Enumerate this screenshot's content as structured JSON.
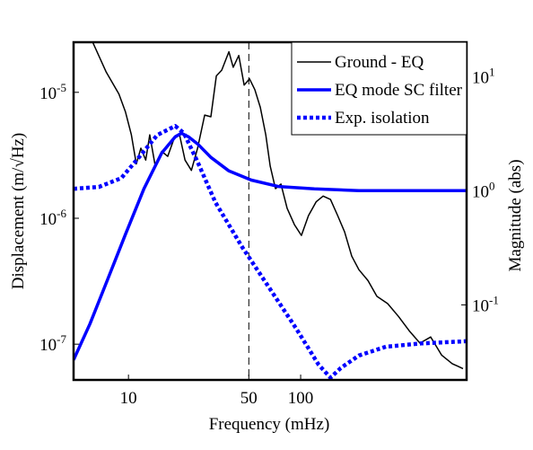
{
  "chart_data": {
    "type": "line",
    "xlabel": "Frequency (mHz)",
    "ylabel": "Displacement  (m/√Hz)",
    "y2label": "Magnitude (abs)",
    "xscale": "log",
    "yscale": "log",
    "y2scale": "log",
    "xlim": [
      4.8,
      920
    ],
    "ylim": [
      5.2e-08,
      2.5e-05
    ],
    "y2lim": [
      0.022,
      20
    ],
    "xticks": [
      10,
      50,
      100
    ],
    "yticks": [
      {
        "value": 1e-07,
        "label": "10^-7"
      },
      {
        "value": 1e-06,
        "label": "10^-6"
      },
      {
        "value": 1e-05,
        "label": "10^-5"
      }
    ],
    "y2ticks": [
      {
        "value": 0.1,
        "label": "10^-1"
      },
      {
        "value": 1,
        "label": "10^0"
      },
      {
        "value": 10,
        "label": "10^1"
      }
    ],
    "vline": 50,
    "legend": "upper right",
    "series": [
      {
        "name": "Ground - EQ",
        "color": "#000000",
        "style": "solid",
        "width": 1.5,
        "axis": "y",
        "x": [
          6.2,
          7.4,
          8.8,
          9.6,
          10.4,
          11.1,
          11.8,
          12.6,
          13.3,
          14.3,
          15.6,
          16.9,
          18.4,
          19.8,
          21.3,
          23.2,
          25.2,
          27.7,
          30.1,
          32.4,
          34.8,
          38.3,
          40.6,
          43.7,
          47,
          50.5,
          54.2,
          58.3,
          62.7,
          66.5,
          71.4,
          76.8,
          83.5,
          92,
          101,
          111,
          123,
          135,
          149,
          164,
          180,
          198,
          218,
          246,
          277,
          320,
          370,
          427,
          493,
          569,
          658,
          759,
          877
        ],
        "values": [
          2.5e-05,
          1.46e-05,
          9.7e-06,
          7e-06,
          4.6e-06,
          2.7e-06,
          3.6e-06,
          2.9e-06,
          4.6e-06,
          2.6e-06,
          3.4e-06,
          3.1e-06,
          4.3e-06,
          4.6e-06,
          2.9e-06,
          2.4e-06,
          3.6e-06,
          6.6e-06,
          6.4e-06,
          1.35e-05,
          1.5e-05,
          2.1e-05,
          1.58e-05,
          1.96e-05,
          1.14e-05,
          1.28e-05,
          1.05e-05,
          7.6e-06,
          4.6e-06,
          2.6e-06,
          1.72e-06,
          1.87e-06,
          1.2e-06,
          8.9e-07,
          7.3e-07,
          1.05e-06,
          1.35e-06,
          1.5e-06,
          1.41e-06,
          1.05e-06,
          7.8e-07,
          5e-07,
          3.9e-07,
          3.2e-07,
          2.4e-07,
          2.1e-07,
          1.66e-07,
          1.28e-07,
          1.02e-07,
          1.14e-07,
          8.2e-08,
          7e-08,
          6.4e-08
        ]
      },
      {
        "name": "EQ mode SC filter",
        "color": "#0000ff",
        "style": "solid",
        "width": 3.5,
        "axis": "y2",
        "x": [
          4.8,
          5.97,
          7.59,
          9.64,
          12.3,
          15.6,
          18.7,
          20.3,
          22.3,
          25.2,
          30.1,
          38.3,
          51.7,
          74.1,
          120,
          218,
          920
        ],
        "values": [
          0.033,
          0.068,
          0.169,
          0.42,
          1.04,
          2.14,
          2.97,
          3.19,
          2.97,
          2.57,
          1.96,
          1.49,
          1.24,
          1.09,
          1.04,
          1.0,
          1.0
        ]
      },
      {
        "name": "Exp. isolation",
        "color": "#0000ff",
        "style": "dotted",
        "width": 4.5,
        "axis": "y2",
        "x": [
          4.8,
          6.73,
          9.09,
          11.5,
          14.7,
          18.7,
          21.0,
          25.2,
          32.0,
          45.8,
          65.7,
          94.2,
          127,
          149,
          171,
          218,
          313,
          505,
          920
        ],
        "values": [
          1.04,
          1.08,
          1.29,
          1.96,
          3.08,
          3.69,
          3.19,
          1.79,
          0.79,
          0.32,
          0.141,
          0.062,
          0.03,
          0.023,
          0.028,
          0.036,
          0.043,
          0.046,
          0.048
        ]
      }
    ]
  }
}
